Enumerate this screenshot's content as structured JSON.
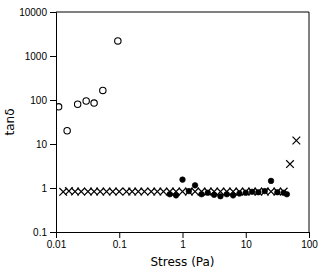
{
  "chart_data": {
    "type": "scatter",
    "xlabel": "Stress (Pa)",
    "ylabel": "tanδ",
    "log": true,
    "grid": false,
    "color": "#000000",
    "xlim": [
      0.01,
      100
    ],
    "xticks": [
      0.01,
      0.1,
      1,
      10,
      100
    ],
    "ylim": [
      0.1,
      10000
    ],
    "yticks": [
      0.1,
      1,
      10,
      100,
      1000,
      10000
    ],
    "series": [
      {
        "marker": "open-circle",
        "x": [
          0.011,
          0.015,
          0.022,
          0.03,
          0.04,
          0.055,
          0.095
        ],
        "values": [
          70,
          20,
          80,
          95,
          85,
          165,
          2200
        ]
      },
      {
        "marker": "x",
        "x": [
          0.013,
          0.016,
          0.02,
          0.025,
          0.032,
          0.04,
          0.05,
          0.063,
          0.079,
          0.1,
          0.13,
          0.16,
          0.2,
          0.25,
          0.32,
          0.4,
          0.5,
          0.63,
          0.79,
          1.0,
          1.26,
          1.58,
          2.0,
          2.51,
          3.16,
          3.98,
          5.01,
          6.31,
          7.94,
          10.0,
          12.6,
          15.8,
          20.0,
          25.1,
          31.6,
          39.8,
          50.1,
          63.1
        ],
        "values": [
          0.82,
          0.85,
          0.83,
          0.83,
          0.83,
          0.83,
          0.83,
          0.83,
          0.83,
          0.83,
          0.83,
          0.83,
          0.83,
          0.83,
          0.83,
          0.83,
          0.83,
          0.83,
          0.83,
          0.83,
          0.83,
          0.83,
          0.83,
          0.83,
          0.83,
          0.83,
          0.83,
          0.83,
          0.83,
          0.83,
          0.83,
          0.83,
          0.83,
          0.83,
          0.83,
          0.83,
          3.5,
          12.0
        ]
      },
      {
        "marker": "circle",
        "x": [
          0.63,
          0.79,
          1.0,
          1.26,
          1.58,
          2.0,
          2.51,
          3.16,
          3.98,
          5.01,
          6.31,
          7.94,
          10.0,
          12.6,
          15.8,
          20.0,
          25.1,
          31.6,
          39.8,
          44.7
        ],
        "values": [
          0.72,
          0.68,
          1.55,
          0.85,
          1.15,
          0.72,
          0.78,
          0.7,
          0.65,
          0.72,
          0.68,
          0.75,
          0.78,
          0.82,
          0.8,
          0.85,
          1.45,
          0.8,
          0.78,
          0.72
        ]
      }
    ]
  }
}
